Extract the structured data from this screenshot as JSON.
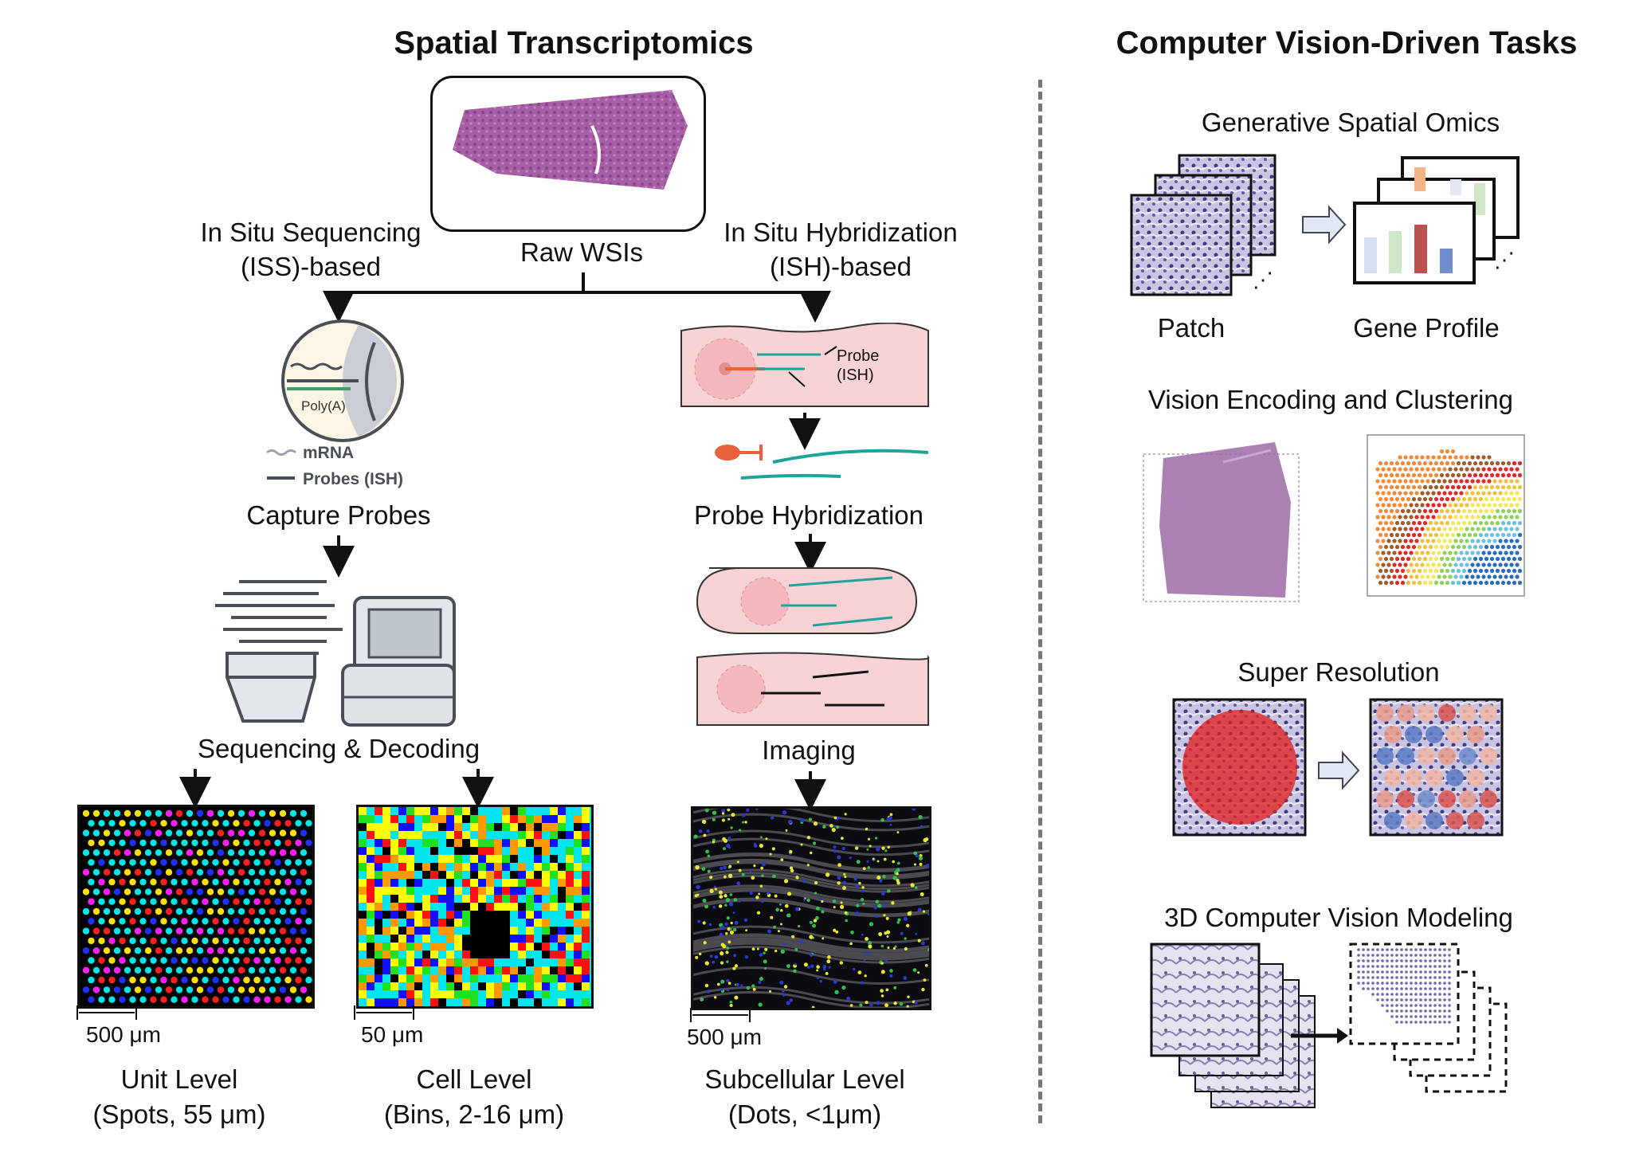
{
  "left": {
    "title": "Spatial Transcriptomics",
    "raw_wsi": "Raw WSIs",
    "iss": {
      "line1": "In Situ Sequencing",
      "line2": "(ISS)-based"
    },
    "ish": {
      "line1": "In Situ Hybridization",
      "line2": "(ISH)-based"
    },
    "capture_probes": "Capture Probes",
    "probe_hybridization": "Probe Hybridization",
    "sequencing_decoding": "Sequencing & Decoding",
    "imaging": "Imaging",
    "legend_mrna": "mRNA",
    "legend_probes": "Probes (ISH)",
    "poly_a": "Poly(A)",
    "probe_label": {
      "line1": "Probe",
      "line2": "(ISH)"
    },
    "levels": [
      {
        "name": "Unit Level",
        "detail": "(Spots, 55 μm)",
        "scale": "500 μm"
      },
      {
        "name": "Cell Level",
        "detail": "(Bins, 2-16 μm)",
        "scale": "50 μm"
      },
      {
        "name": "Subcellular Level",
        "detail": "(Dots, <1μm)",
        "scale": "500 μm"
      }
    ]
  },
  "right": {
    "title": "Computer Vision-Driven Tasks",
    "tasks": [
      {
        "title": "Generative Spatial Omics",
        "input": "Patch",
        "output": "Gene Profile"
      },
      {
        "title": "Vision Encoding and Clustering"
      },
      {
        "title": "Super Resolution"
      },
      {
        "title": "3D Computer Vision Modeling"
      }
    ]
  },
  "colors": {
    "tissue_purple": "#9a4f9a",
    "probe_teal": "#20a39a",
    "cell_pink": "#f7d3d6",
    "accent_red": "#d9534f",
    "arrow_fill": "#e2e8f4"
  }
}
